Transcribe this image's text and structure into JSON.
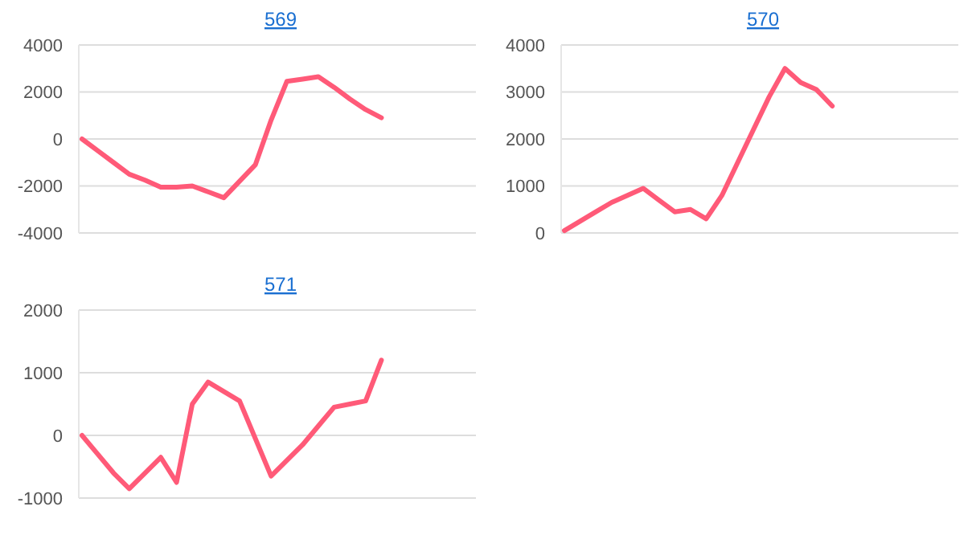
{
  "chart_data": [
    {
      "type": "line",
      "title": "569",
      "categories": [
        null,
        null,
        null,
        null,
        null,
        null,
        null,
        null,
        null,
        null,
        null,
        null,
        null,
        null,
        null,
        null,
        null,
        null,
        null,
        null,
        null,
        null,
        null,
        null,
        null,
        null
      ],
      "series": [
        {
          "color": "#ff5a78",
          "values": [
            0,
            -500,
            -1000,
            -1500,
            -1750,
            -2050,
            -2050,
            -2000,
            -2250,
            -2500,
            -1800,
            -1100,
            800,
            2450,
            2550,
            2650,
            2200,
            1700,
            1250,
            900,
            null,
            null,
            null,
            null,
            null,
            null
          ]
        }
      ],
      "ylim": [
        -4000,
        4000
      ],
      "yticks": [
        -4000,
        -2000,
        0,
        2000,
        4000
      ],
      "grid": "y",
      "marker": "none",
      "line_style": "solid"
    },
    {
      "type": "line",
      "title": "570",
      "categories": [
        null,
        null,
        null,
        null,
        null,
        null,
        null,
        null,
        null,
        null,
        null,
        null,
        null,
        null,
        null,
        null,
        null,
        null,
        null,
        null,
        null,
        null,
        null,
        null,
        null,
        null
      ],
      "series": [
        {
          "color": "#ff5a78",
          "values": [
            50,
            250,
            450,
            650,
            800,
            950,
            700,
            450,
            500,
            300,
            800,
            1500,
            2200,
            2900,
            3500,
            3200,
            3050,
            2700,
            null,
            null,
            null,
            null,
            null,
            null,
            null,
            null
          ]
        }
      ],
      "ylim": [
        0,
        4000
      ],
      "yticks": [
        0,
        1000,
        2000,
        3000,
        4000
      ],
      "grid": "y",
      "marker": "none",
      "line_style": "solid"
    },
    {
      "type": "line",
      "title": "571",
      "categories": [
        null,
        null,
        null,
        null,
        null,
        null,
        null,
        null,
        null,
        null,
        null,
        null,
        null,
        null,
        null,
        null,
        null,
        null,
        null,
        null,
        null,
        null,
        null,
        null,
        null,
        null
      ],
      "series": [
        {
          "color": "#ff5a78",
          "values": [
            0,
            -300,
            -600,
            -850,
            -600,
            -350,
            -750,
            500,
            850,
            700,
            550,
            -50,
            -650,
            -400,
            -150,
            150,
            450,
            500,
            550,
            1200,
            null,
            null,
            null,
            null,
            null,
            null
          ]
        }
      ],
      "ylim": [
        -1000,
        2000
      ],
      "yticks": [
        -1000,
        0,
        1000,
        2000
      ],
      "grid": "y",
      "marker": "none",
      "line_style": "solid"
    }
  ]
}
